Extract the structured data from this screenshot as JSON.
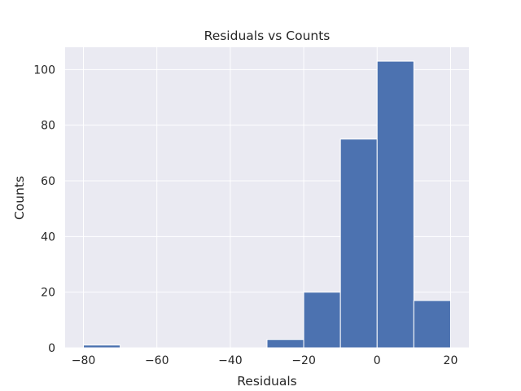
{
  "chart_data": {
    "type": "bar",
    "title": "Residuals vs Counts",
    "xlabel": "Residuals",
    "ylabel": "Counts",
    "xlim": [
      -85,
      25
    ],
    "ylim": [
      0,
      108
    ],
    "xticks": [
      -80,
      -60,
      -40,
      -20,
      0,
      20
    ],
    "yticks": [
      0,
      20,
      40,
      60,
      80,
      100
    ],
    "xtick_labels": [
      "−80",
      "−60",
      "−40",
      "−20",
      "0",
      "20"
    ],
    "ytick_labels": [
      "0",
      "20",
      "40",
      "60",
      "80",
      "100"
    ],
    "grid": true,
    "bin_edges": [
      -80,
      -70,
      -60,
      -50,
      -40,
      -30,
      -20,
      -10,
      0,
      10,
      20
    ],
    "values": [
      1,
      0,
      0,
      0,
      0,
      3,
      20,
      75,
      103,
      17
    ],
    "colors": {
      "plot_background": "#eaeaf2",
      "grid": "#ffffff",
      "bar_fill": "#4c72b0",
      "bar_edge": "#ffffff",
      "text": "#262626"
    }
  }
}
